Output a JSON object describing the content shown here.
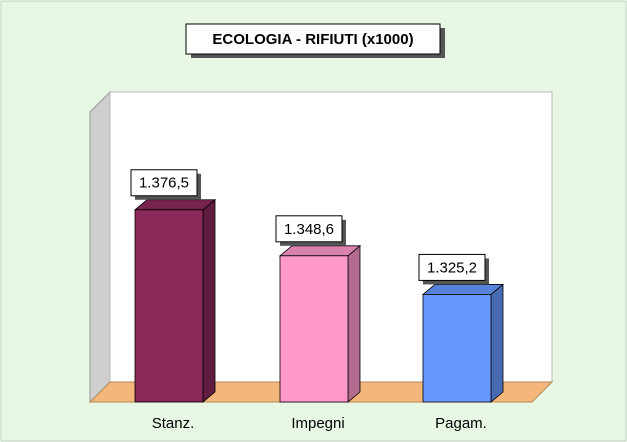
{
  "chart_data": {
    "type": "bar3d",
    "title": "ECOLOGIA - RIFIUTI (x1000)",
    "categories": [
      "Stanz.",
      "Impegni",
      "Pagam."
    ],
    "values": [
      1376.5,
      1348.6,
      1325.2
    ],
    "value_labels": [
      "1.376,5",
      "1.348,6",
      "1.325,2"
    ],
    "colors": [
      "#8b2a5a",
      "#ff99cc",
      "#6699ff"
    ],
    "ylim": [
      1260,
      1440
    ]
  }
}
